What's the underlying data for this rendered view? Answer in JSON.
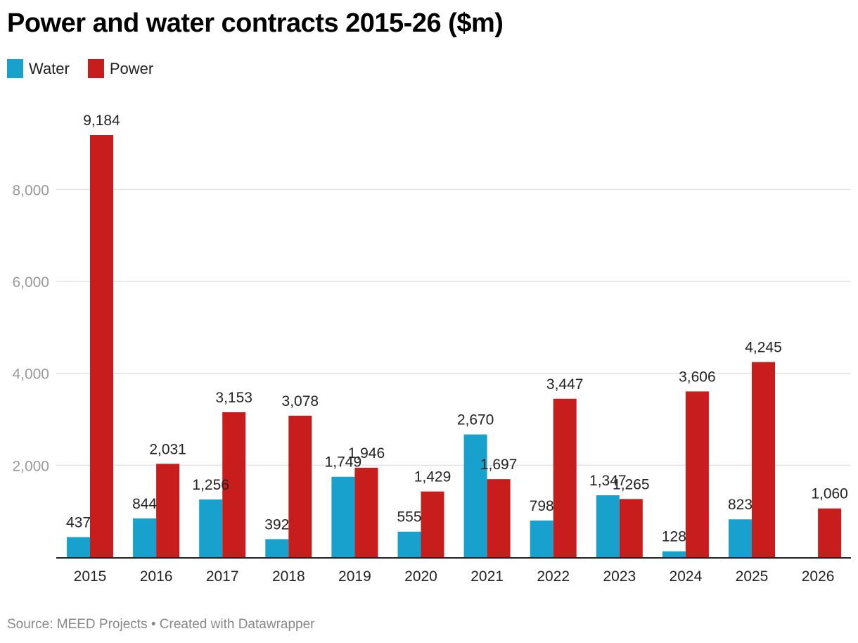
{
  "chart_data": {
    "type": "bar",
    "title": "Power and water contracts 2015-26 ($m)",
    "xlabel": "",
    "ylabel": "",
    "categories": [
      "2015",
      "2016",
      "2017",
      "2018",
      "2019",
      "2020",
      "2021",
      "2022",
      "2023",
      "2024",
      "2025",
      "2026"
    ],
    "series": [
      {
        "name": "Water",
        "color": "#18a1cd",
        "values": [
          437,
          844,
          1256,
          392,
          1749,
          555,
          2670,
          798,
          1347,
          128,
          823,
          null
        ],
        "labels": [
          "437",
          "844",
          "1,256",
          "392",
          "1,749",
          "555",
          "2,670",
          "798",
          "1,347",
          "128",
          "823",
          ""
        ]
      },
      {
        "name": "Power",
        "color": "#c71e1d",
        "values": [
          9184,
          2031,
          3153,
          3078,
          1946,
          1429,
          1697,
          3447,
          1265,
          3606,
          4245,
          1060
        ],
        "labels": [
          "9,184",
          "2,031",
          "3,153",
          "3,078",
          "1,946",
          "1,429",
          "1,697",
          "3,447",
          "1,265",
          "3,606",
          "4,245",
          "1,060"
        ]
      }
    ],
    "yticks": [
      2000,
      4000,
      6000,
      8000
    ],
    "ytick_labels": [
      "2,000",
      "4,000",
      "6,000",
      "8,000"
    ],
    "ylim": [
      0,
      9184
    ],
    "grid": true,
    "legend_position": "top-left"
  },
  "footer": {
    "source": "Source: MEED Projects • Created with Datawrapper"
  }
}
